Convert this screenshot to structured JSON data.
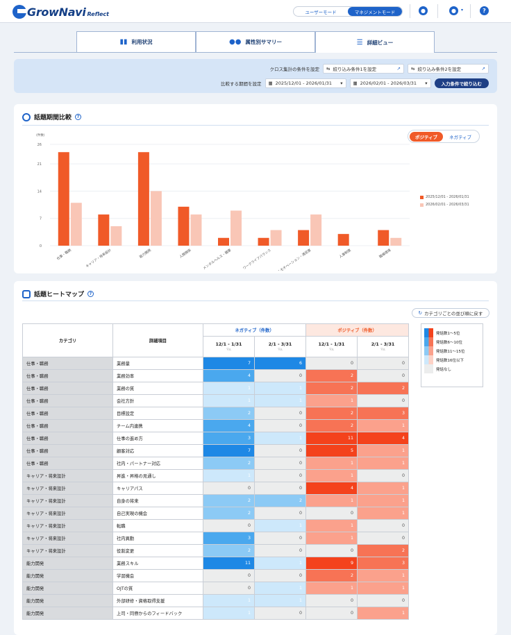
{
  "app": {
    "name": "GrowNavi",
    "sub": "Reflect"
  },
  "header": {
    "mode_user": "ユーザーモード",
    "mode_manage": "マネジメントモード"
  },
  "tabs": [
    {
      "label": "利用状況",
      "icon": "bar-chart-icon"
    },
    {
      "label": "属性別サマリー",
      "icon": "people-icon"
    },
    {
      "label": "詳細ビュー",
      "icon": "database-icon",
      "active": true
    }
  ],
  "filter": {
    "cross_label": "クロス集計の条件を設定",
    "cond1": "絞り込み条件1を設定",
    "cond2": "絞り込み条件2を設定",
    "period_label": "比較する期間を設定",
    "period1": "2025/12/01 - 2026/01/31",
    "period2": "2026/02/01 - 2026/03/31",
    "apply": "入力条件で絞り込む"
  },
  "compare": {
    "title": "話題期間比較",
    "toggle_pos": "ポジティブ",
    "toggle_neg": "ネガティブ"
  },
  "chart_data": {
    "type": "bar",
    "ylabel": "(件数)",
    "ylim": [
      0,
      26
    ],
    "yticks": [
      0,
      7,
      14,
      21,
      26
    ],
    "categories": [
      "仕事・職務",
      "キャリア・将来設計",
      "能力開発",
      "人間関係",
      "メンタルヘルス・健康",
      "ワークライフバランス",
      "仕事に対するモチベーション・満足度",
      "人事制度",
      "職場環境"
    ],
    "series": [
      {
        "name": "2025/12/01 - 2026/01/31",
        "color": "#f05a28",
        "values": [
          24,
          8,
          24,
          10,
          2,
          2,
          4,
          3,
          4
        ]
      },
      {
        "name": "2026/02/01 - 2026/03/31",
        "color": "#f9c6b6",
        "values": [
          11,
          5,
          14,
          8,
          9,
          4,
          8,
          0,
          2
        ]
      }
    ]
  },
  "heatmap": {
    "title": "話題ヒートマップ",
    "reset": "カテゴリごとの並び順に戻す",
    "col_category": "カテゴリ",
    "col_detail": "詳細項目",
    "neg_header": "ネガティブ（件数）",
    "pos_header": "ポジティブ（件数）",
    "period_a": "12/1 - 1/31",
    "period_b": "2/1 - 3/31",
    "legend": [
      "発話数1〜5位",
      "発話数6〜10位",
      "発話数11〜15位",
      "発話数16位以下",
      "発話なし"
    ],
    "rows": [
      {
        "cat": "仕事・職務",
        "det": "業務量",
        "n1": "7",
        "n2": "6",
        "p1": "0",
        "p2": "0"
      },
      {
        "cat": "仕事・職務",
        "det": "業務効率",
        "n1": "4",
        "n2": "0",
        "p1": "2",
        "p2": "0"
      },
      {
        "cat": "仕事・職務",
        "det": "業務の質",
        "n1": "1",
        "n2": "1",
        "p1": "2",
        "p2": "2"
      },
      {
        "cat": "仕事・職務",
        "det": "会社方針",
        "n1": "1",
        "n2": "1",
        "p1": "1",
        "p2": "0"
      },
      {
        "cat": "仕事・職務",
        "det": "目標設定",
        "n1": "2",
        "n2": "0",
        "p1": "2",
        "p2": "3"
      },
      {
        "cat": "仕事・職務",
        "det": "チーム内連携",
        "n1": "4",
        "n2": "0",
        "p1": "2",
        "p2": "1"
      },
      {
        "cat": "仕事・職務",
        "det": "仕事の進め方",
        "n1": "3",
        "n2": "1",
        "p1": "11",
        "p2": "4"
      },
      {
        "cat": "仕事・職務",
        "det": "顧客対応",
        "n1": "7",
        "n2": "0",
        "p1": "5",
        "p2": "1"
      },
      {
        "cat": "仕事・職務",
        "det": "社内・パートナー対応",
        "n1": "2",
        "n2": "0",
        "p1": "1",
        "p2": "1"
      },
      {
        "cat": "キャリア・将来設計",
        "det": "昇進・昇格の見通し",
        "n1": "1",
        "n2": "0",
        "p1": "1",
        "p2": "0"
      },
      {
        "cat": "キャリア・将来設計",
        "det": "キャリアパス",
        "n1": "0",
        "n2": "0",
        "p1": "4",
        "p2": "1"
      },
      {
        "cat": "キャリア・将来設計",
        "det": "自身の将来",
        "n1": "2",
        "n2": "2",
        "p1": "1",
        "p2": "1"
      },
      {
        "cat": "キャリア・将来設計",
        "det": "自己実現の機会",
        "n1": "2",
        "n2": "0",
        "p1": "0",
        "p2": "1"
      },
      {
        "cat": "キャリア・将来設計",
        "det": "転職",
        "n1": "0",
        "n2": "1",
        "p1": "1",
        "p2": "0"
      },
      {
        "cat": "キャリア・将来設計",
        "det": "社内異動",
        "n1": "3",
        "n2": "0",
        "p1": "1",
        "p2": "0"
      },
      {
        "cat": "キャリア・将来設計",
        "det": "役割変更",
        "n1": "2",
        "n2": "0",
        "p1": "0",
        "p2": "2"
      },
      {
        "cat": "能力開発",
        "det": "業務スキル",
        "n1": "11",
        "n2": "1",
        "p1": "9",
        "p2": "3"
      },
      {
        "cat": "能力開発",
        "det": "学習機会",
        "n1": "0",
        "n2": "0",
        "p1": "2",
        "p2": "1"
      },
      {
        "cat": "能力開発",
        "det": "OJTの質",
        "n1": "0",
        "n2": "1",
        "p1": "1",
        "p2": "1"
      },
      {
        "cat": "能力開発",
        "det": "外部研修・資格取得支援",
        "n1": "1",
        "n2": "1",
        "p1": "0",
        "p2": "0"
      },
      {
        "cat": "能力開発",
        "det": "上司・同僚からのフィードバック",
        "n1": "1",
        "n2": "0",
        "p1": "0",
        "p2": "1"
      }
    ]
  }
}
